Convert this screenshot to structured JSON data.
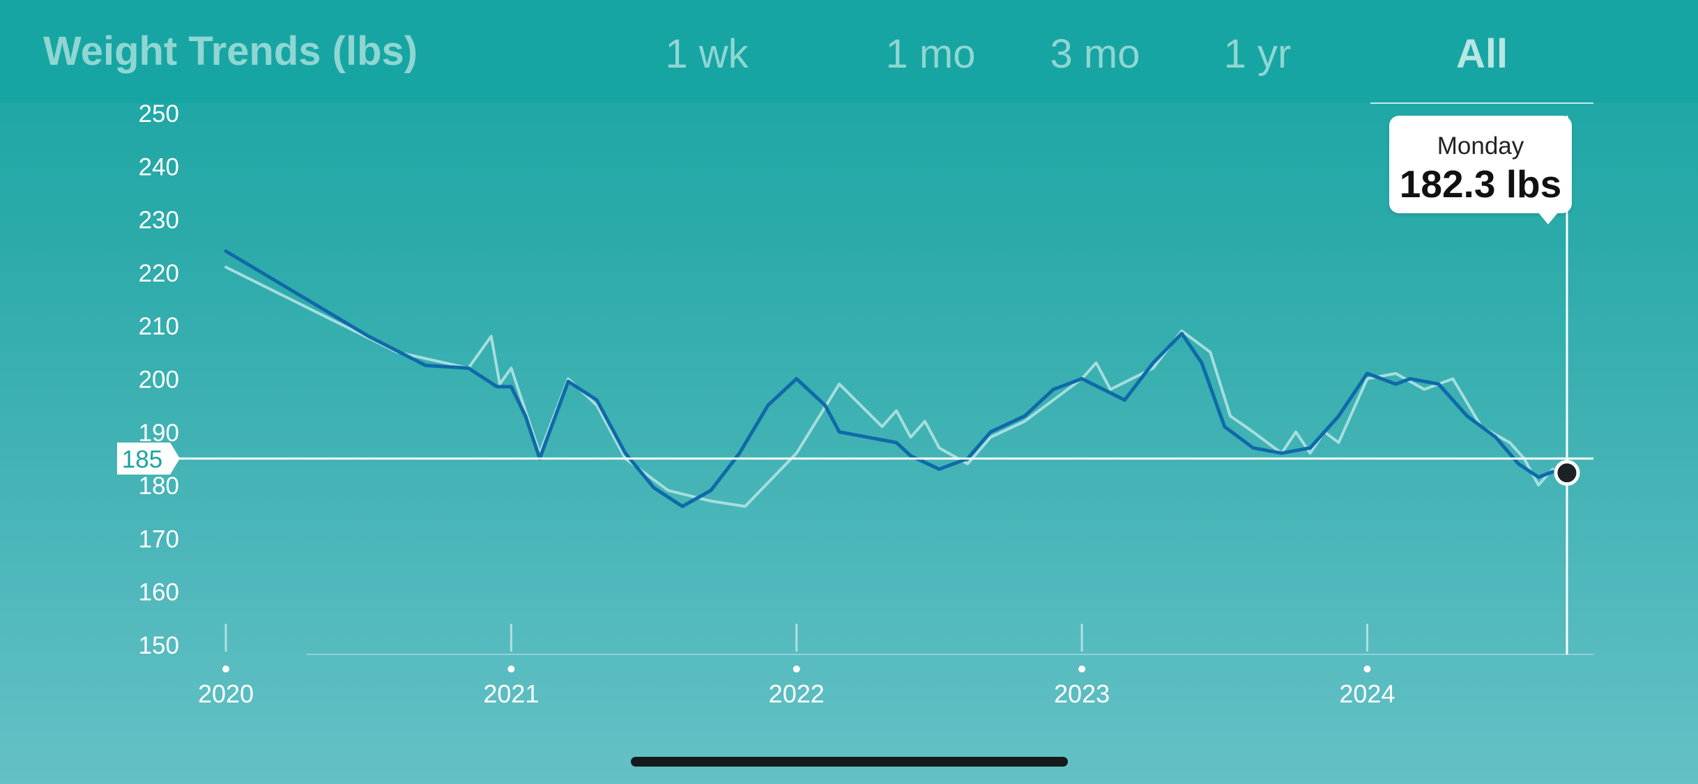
{
  "header": {
    "title": "Weight Trends (lbs)",
    "ranges": [
      {
        "label": "1 wk"
      },
      {
        "label": "1 mo"
      },
      {
        "label": "3 mo"
      },
      {
        "label": "1 yr"
      },
      {
        "label": "All",
        "active": true
      }
    ]
  },
  "tooltip": {
    "day": "Monday",
    "value": "182.3 lbs"
  },
  "colors": {
    "trend_line": "#0f6aa8",
    "raw_line": "#a6dede",
    "reference_line": "#ffffff",
    "marker": "#1b2124",
    "reference_label": "#18a39f"
  },
  "chart_data": {
    "type": "line",
    "title": "Weight Trends (lbs)",
    "xlabel": "",
    "ylabel": "",
    "ylim": [
      150,
      250
    ],
    "xlim": [
      2020.0,
      2024.7
    ],
    "yticks": [
      150,
      160,
      170,
      180,
      190,
      200,
      210,
      220,
      230,
      240,
      250
    ],
    "xticks": [
      {
        "value": 2020,
        "label": "2020"
      },
      {
        "value": 2021,
        "label": "2021"
      },
      {
        "value": 2022,
        "label": "2022"
      },
      {
        "value": 2023,
        "label": "2023"
      },
      {
        "value": 2024,
        "label": "2024"
      }
    ],
    "reference_line": {
      "value": 185,
      "label": "185"
    },
    "selected_point": {
      "x": 2024.7,
      "y": 182.3
    },
    "grid": false,
    "series": [
      {
        "role": "trend",
        "x": [
          2020.0,
          2020.25,
          2020.5,
          2020.7,
          2020.85,
          2020.95,
          2021.0,
          2021.05,
          2021.1,
          2021.2,
          2021.3,
          2021.4,
          2021.5,
          2021.6,
          2021.7,
          2021.8,
          2021.9,
          2022.0,
          2022.1,
          2022.15,
          2022.25,
          2022.35,
          2022.4,
          2022.5,
          2022.6,
          2022.68,
          2022.8,
          2022.9,
          2023.0,
          2023.15,
          2023.25,
          2023.35,
          2023.42,
          2023.5,
          2023.6,
          2023.7,
          2023.8,
          2023.9,
          2024.0,
          2024.1,
          2024.15,
          2024.25,
          2024.35,
          2024.45,
          2024.53,
          2024.6,
          2024.65,
          2024.7
        ],
        "y": [
          224,
          216,
          208,
          202.5,
          202,
          198.5,
          198.5,
          193,
          185,
          199.5,
          196,
          186,
          179.5,
          176,
          179,
          186,
          195,
          200,
          195,
          190,
          189,
          188,
          185.5,
          183,
          185,
          190,
          193,
          198,
          200,
          196,
          203,
          208.5,
          203,
          191,
          187,
          186,
          187,
          193,
          201,
          199,
          200,
          199,
          193,
          189,
          184,
          181.5,
          182.5,
          182.3
        ]
      },
      {
        "role": "raw",
        "x": [
          2020.0,
          2020.3,
          2020.6,
          2020.85,
          2020.93,
          2020.96,
          2021.0,
          2021.05,
          2021.1,
          2021.2,
          2021.3,
          2021.4,
          2021.55,
          2021.7,
          2021.82,
          2022.0,
          2022.15,
          2022.3,
          2022.35,
          2022.4,
          2022.45,
          2022.5,
          2022.6,
          2022.68,
          2022.8,
          2023.0,
          2023.05,
          2023.1,
          2023.25,
          2023.35,
          2023.45,
          2023.52,
          2023.6,
          2023.7,
          2023.75,
          2023.8,
          2023.85,
          2023.9,
          2024.0,
          2024.1,
          2024.2,
          2024.3,
          2024.4,
          2024.5,
          2024.55,
          2024.6,
          2024.65,
          2024.7
        ],
        "y": [
          221,
          213,
          205,
          202,
          208,
          199,
          202,
          194,
          186,
          200,
          195,
          185,
          179,
          177,
          176,
          186,
          199,
          191,
          194,
          189,
          192,
          187,
          184,
          189,
          192,
          200,
          203,
          198,
          202,
          209,
          205,
          193,
          190,
          186,
          190,
          186,
          190,
          188,
          200,
          201,
          198,
          200,
          191,
          188,
          185,
          180,
          183,
          180
        ]
      }
    ]
  }
}
